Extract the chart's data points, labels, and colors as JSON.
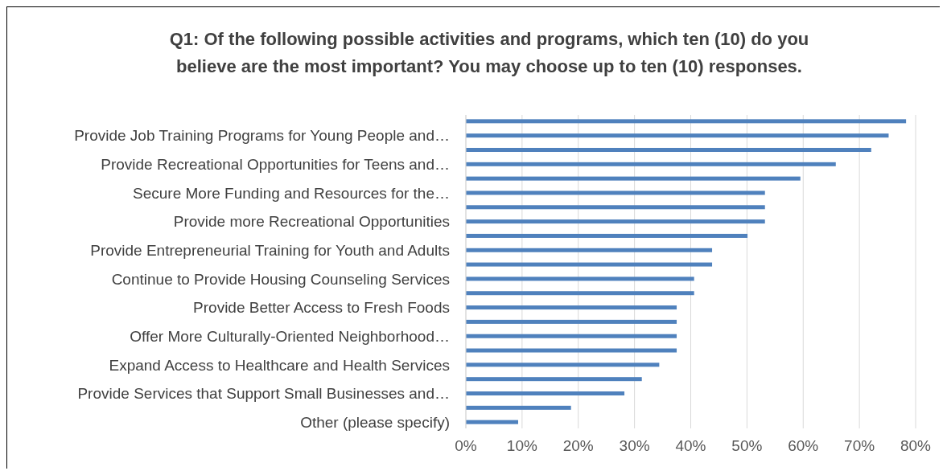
{
  "chart_data": {
    "type": "bar",
    "orientation": "horizontal",
    "title": "Q1: Of the following possible activities and programs, which ten (10) do you believe are the most important? You may choose up to ten (10) responses.",
    "categories": [
      null,
      "Provide Job Training Programs for Young People and…",
      null,
      "Provide Recreational Opportunities for Teens and…",
      null,
      "Secure More Funding and Resources for the…",
      null,
      "Provide more Recreational Opportunities",
      null,
      "Provide Entrepreneurial Training for Youth and Adults",
      null,
      "Continue to Provide Housing Counseling Services",
      null,
      "Provide Better Access to Fresh Foods",
      null,
      "Offer More Culturally-Oriented Neighborhood…",
      null,
      "Expand Access to Healthcare and Health Services",
      null,
      "Provide Services that Support Small Businesses and…",
      null,
      "Other (please specify)"
    ],
    "values": [
      78.3,
      75.2,
      72.1,
      65.8,
      59.5,
      53.2,
      53.2,
      53.2,
      50.1,
      43.8,
      43.8,
      40.6,
      40.6,
      37.5,
      37.5,
      37.5,
      37.5,
      34.4,
      31.3,
      28.2,
      18.7,
      9.3
    ],
    "color": "#4f81bd",
    "xlim": [
      0,
      80
    ],
    "xticks": [
      {
        "value": 0,
        "label": "0%"
      },
      {
        "value": 10,
        "label": "10%"
      },
      {
        "value": 20,
        "label": "20%"
      },
      {
        "value": 30,
        "label": "30%"
      },
      {
        "value": 40,
        "label": "40%"
      },
      {
        "value": 50,
        "label": "50%"
      },
      {
        "value": 60,
        "label": "60%"
      },
      {
        "value": 70,
        "label": "70%"
      },
      {
        "value": 80,
        "label": "80%"
      }
    ],
    "grid": "x"
  }
}
